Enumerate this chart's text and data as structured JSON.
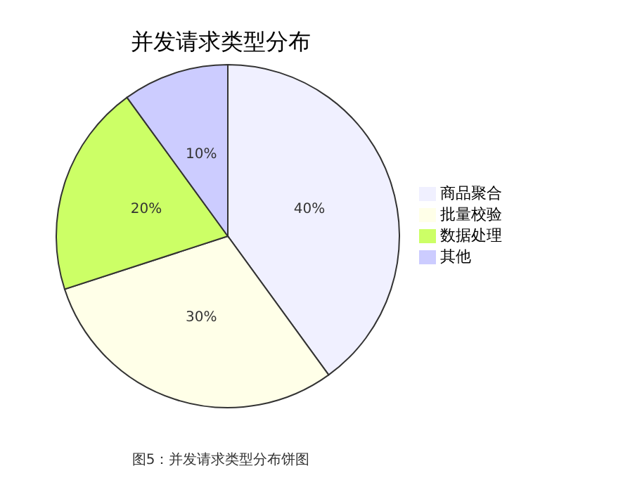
{
  "chart_data": {
    "type": "pie",
    "title": "并发请求类型分布",
    "categories": [
      "商品聚合",
      "批量校验",
      "数据处理",
      "其他"
    ],
    "values": [
      40,
      30,
      20,
      10
    ],
    "colors": [
      "#f0f0ff",
      "#ffffe8",
      "#ccff66",
      "#ccccff"
    ],
    "value_labels": [
      "40%",
      "30%",
      "20%",
      "10%"
    ],
    "legend": "right",
    "annotations": [
      "图5：并发请求类型分布饼图"
    ]
  }
}
